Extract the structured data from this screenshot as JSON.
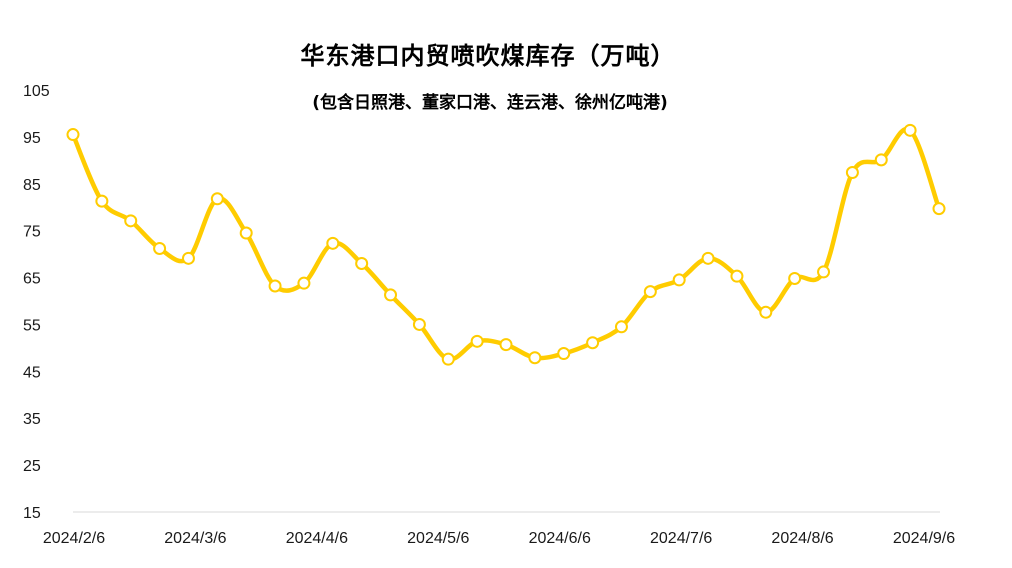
{
  "chart_data": {
    "type": "line",
    "title": "华东港口内贸喷吹煤库存（万吨）",
    "subtitle": "(包含日照港、董家口港、连云港、徐州亿吨港)",
    "xlabel": "",
    "ylabel": "",
    "ylim": [
      15,
      105
    ],
    "yticks": [
      "105",
      "95",
      "85",
      "75",
      "65",
      "55",
      "45",
      "35",
      "25",
      "15"
    ],
    "xticks": [
      "2024/2/6",
      "2024/3/6",
      "2024/4/6",
      "2024/5/6",
      "2024/6/6",
      "2024/7/6",
      "2024/8/6",
      "2024/9/6"
    ],
    "series": [
      {
        "color": "#FFCC00",
        "values": [
          95.5,
          81.3,
          77.1,
          71.2,
          69.1,
          81.8,
          74.5,
          63.2,
          63.8,
          72.3,
          68.0,
          61.3,
          55.0,
          47.6,
          51.4,
          50.7,
          47.9,
          48.8,
          51.1,
          54.5,
          62.0,
          64.5,
          69.1,
          65.3,
          57.6,
          64.8,
          66.2,
          87.4,
          90.1,
          96.4,
          79.7
        ]
      }
    ],
    "grid": false
  }
}
